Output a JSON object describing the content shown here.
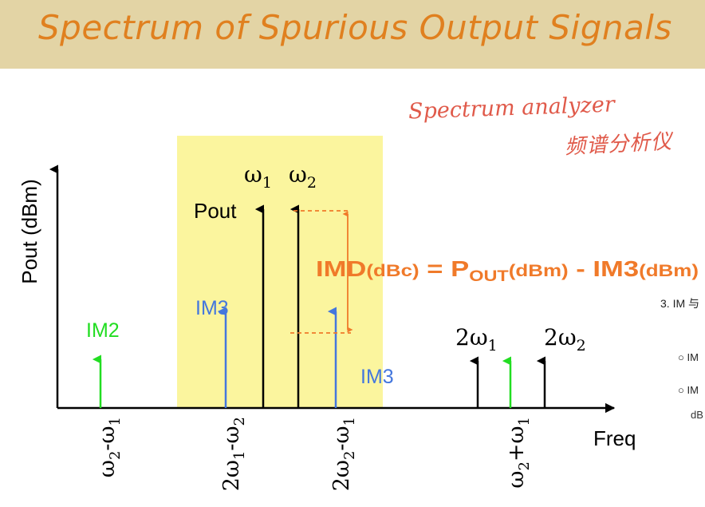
{
  "title": "Spectrum of Spurious Output Signals",
  "handwritten": {
    "english": "Spectrum analyzer",
    "chinese": "频谱分析仪"
  },
  "diagram": {
    "y_axis_label": "Pout (dBm)",
    "x_axis_label": "Freq",
    "pout_label": "Pout",
    "imd_formula": {
      "lhs": "IMD",
      "lhs_unit": "(dBc)",
      "equals": " = ",
      "p": "P",
      "p_sub": "OUT",
      "p_unit": "(dBm)",
      "minus": " - ",
      "im3": "IM3",
      "im3_unit": "(dBm)"
    },
    "tone_labels": {
      "w1": {
        "main": "ω",
        "sub": "1"
      },
      "w2": {
        "main": "ω",
        "sub": "2"
      },
      "w1x2": {
        "main": "2ω",
        "sub": "1"
      },
      "w2x2": {
        "main": "2ω",
        "sub": "2"
      }
    },
    "im_labels": {
      "im2": "IM2",
      "im3_left": "IM3",
      "im3_right": "IM3"
    },
    "x_labels": {
      "diff": [
        "ω",
        "2",
        "-ω",
        "1"
      ],
      "im3_left": [
        "2ω",
        "1",
        "-ω",
        "2"
      ],
      "im3_right": [
        "2ω",
        "2",
        "-ω",
        "1"
      ],
      "sum": [
        "ω",
        "2",
        "+ω",
        "1"
      ]
    }
  },
  "side_text": {
    "item_3": "3. IM 与",
    "sub_a": "○ IM",
    "sub_b": "○ IM",
    "sub_b_cont": "dB"
  },
  "colors": {
    "title": "#e0801f",
    "title_bg": "#e3d4a5",
    "highlight": "#fbf59e",
    "im2": "#22dd22",
    "im3": "#4477dd",
    "formula": "#f07a2a",
    "handwriting": "#e05a4a",
    "ink": "#000000"
  }
}
